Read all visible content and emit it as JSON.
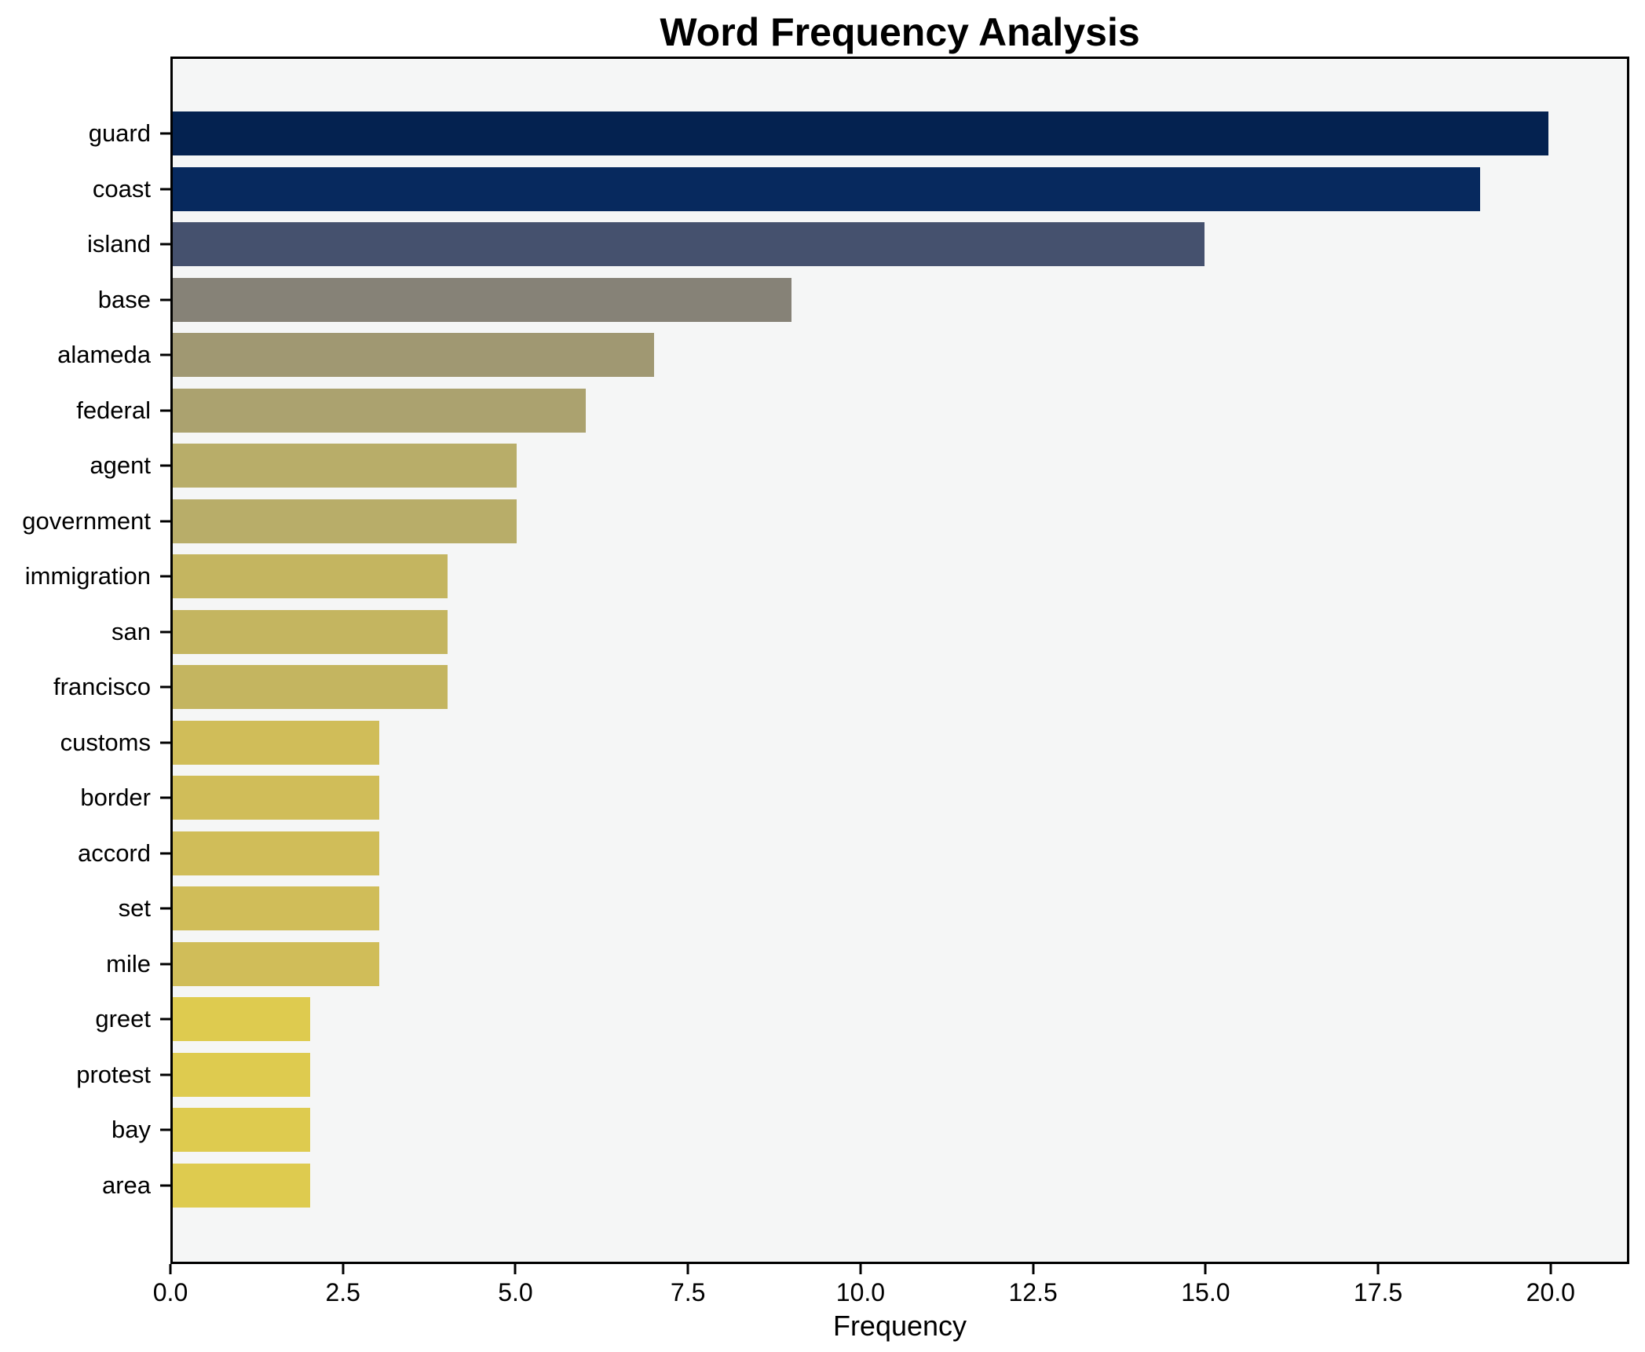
{
  "chart_data": {
    "type": "bar",
    "orientation": "horizontal",
    "title": "Word Frequency Analysis",
    "xlabel": "Frequency",
    "ylabel": "",
    "categories": [
      "guard",
      "coast",
      "island",
      "base",
      "alameda",
      "federal",
      "agent",
      "government",
      "immigration",
      "san",
      "francisco",
      "customs",
      "border",
      "accord",
      "set",
      "mile",
      "greet",
      "protest",
      "bay",
      "area"
    ],
    "values": [
      20,
      19,
      15,
      9,
      7,
      6,
      5,
      5,
      4,
      4,
      4,
      3,
      3,
      3,
      3,
      3,
      2,
      2,
      2,
      2
    ],
    "bar_colors": [
      "#042250",
      "#07295e",
      "#45516e",
      "#868277",
      "#a09872",
      "#aba26f",
      "#b8ad69",
      "#b8ad69",
      "#c4b560",
      "#c4b560",
      "#c4b560",
      "#d0bd59",
      "#d0bd59",
      "#d0bd59",
      "#d0bd59",
      "#d0bd59",
      "#decb4f",
      "#decb4f",
      "#decb4f",
      "#decb4f"
    ],
    "xticks": [
      "0.0",
      "2.5",
      "5.0",
      "7.5",
      "10.0",
      "12.5",
      "15.0",
      "17.5",
      "20.0"
    ],
    "xtick_values": [
      0,
      2.5,
      5,
      7.5,
      10,
      12.5,
      15,
      17.5,
      20
    ],
    "xlim": [
      0,
      21.14
    ],
    "grid": false,
    "legend": false,
    "plot_background": "#f5f6f6",
    "figure_background": "#ffffff",
    "spine_color": "#000000"
  }
}
